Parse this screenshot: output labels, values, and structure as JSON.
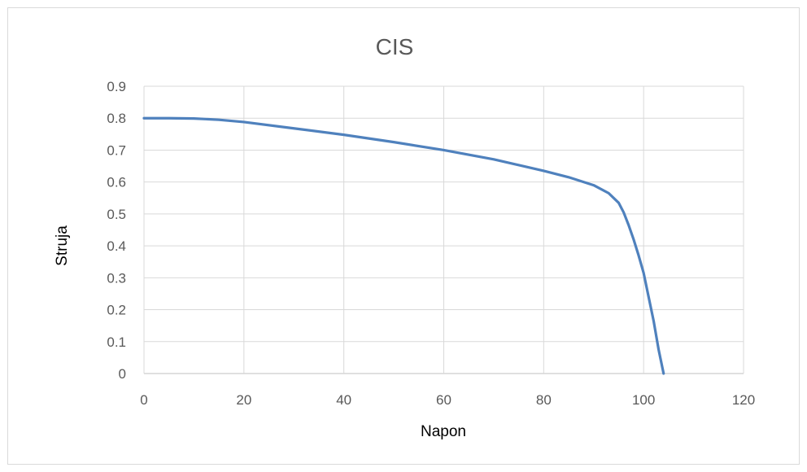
{
  "chart_data": {
    "type": "line",
    "title": "CIS",
    "xlabel": "Napon",
    "ylabel": "Struja",
    "xlim": [
      0,
      120
    ],
    "ylim": [
      0,
      0.9
    ],
    "x_ticks": [
      "0",
      "20",
      "40",
      "60",
      "80",
      "100",
      "120"
    ],
    "y_ticks": [
      "0",
      "0.1",
      "0.2",
      "0.3",
      "0.4",
      "0.5",
      "0.6",
      "0.7",
      "0.8",
      "0.9"
    ],
    "grid": true,
    "legend": "none",
    "series": [
      {
        "color": "#4f81bd",
        "x": [
          0,
          5,
          10,
          15,
          20,
          30,
          40,
          50,
          60,
          70,
          80,
          85,
          90,
          93,
          95,
          96,
          97,
          98,
          99,
          100,
          101,
          102,
          103,
          104
        ],
        "y": [
          0.8,
          0.8,
          0.799,
          0.795,
          0.788,
          0.768,
          0.748,
          0.725,
          0.7,
          0.671,
          0.635,
          0.615,
          0.59,
          0.565,
          0.535,
          0.505,
          0.465,
          0.42,
          0.37,
          0.315,
          0.24,
          0.165,
          0.075,
          0.0
        ]
      }
    ]
  }
}
